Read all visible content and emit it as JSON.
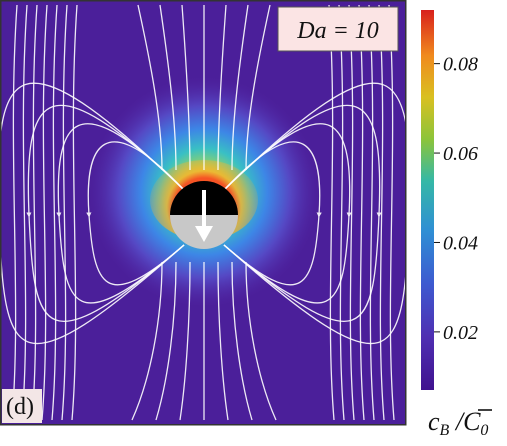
{
  "panel_label": "(d)",
  "parameter_box": {
    "text": "Da = 10"
  },
  "colorbar": {
    "ticks": [
      {
        "value": 0.08,
        "label": "0.08"
      },
      {
        "value": 0.06,
        "label": "0.06"
      },
      {
        "value": 0.04,
        "label": "0.04"
      },
      {
        "value": 0.02,
        "label": "0.02"
      }
    ],
    "range": [
      0.007,
      0.092
    ],
    "label_main": "c",
    "label_sub1": "B",
    "label_sep": " /",
    "label_over": "C",
    "label_sub2": "0"
  },
  "colors": {
    "background_low": "#4b1f9a",
    "stripe": "#ff6a4a",
    "stream": "#ffffff",
    "cap_top": "#000000",
    "cap_bottom": "#c8c8c8"
  }
}
